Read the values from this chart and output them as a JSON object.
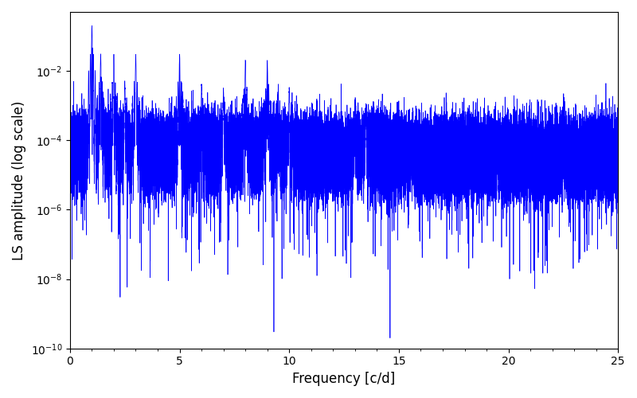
{
  "title": "",
  "xlabel": "Frequency [c/d]",
  "ylabel": "LS amplitude (log scale)",
  "xlim": [
    0,
    25
  ],
  "ylim": [
    1e-10,
    0.5
  ],
  "line_color": "#0000ff",
  "line_width": 0.5,
  "background_color": "#ffffff",
  "figsize": [
    8.0,
    5.0
  ],
  "dpi": 100,
  "seed": 12345,
  "n_points": 60000,
  "peak_freqs": [
    1.0,
    1.4,
    2.0,
    2.5,
    3.0,
    5.0,
    6.0,
    7.0,
    8.0,
    9.0,
    9.5,
    10.0,
    13.0,
    13.5,
    15.5,
    19.5,
    22.5
  ],
  "peak_amps": [
    0.2,
    0.03,
    0.03,
    0.005,
    0.03,
    0.03,
    0.004,
    0.003,
    0.02,
    0.02,
    0.003,
    0.003,
    0.001,
    0.001,
    0.0003,
    0.0001,
    2e-05
  ],
  "deep_trough_freqs": [
    9.3,
    14.6
  ],
  "deep_trough_vals": [
    3e-10,
    2e-10
  ],
  "xticks": [
    0,
    5,
    10,
    15,
    20,
    25
  ]
}
